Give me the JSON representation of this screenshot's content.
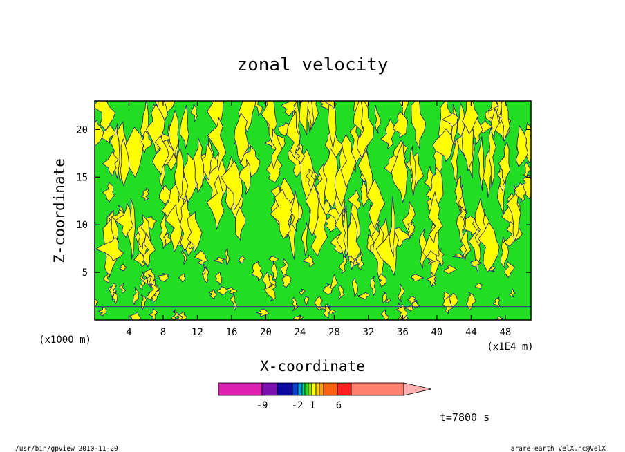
{
  "chart_data": {
    "type": "heatmap",
    "title": "zonal velocity",
    "xlabel": "X-coordinate",
    "ylabel": "Z-coordinate",
    "x_unit": "(x1E4 m)",
    "y_unit": "(x1000 m)",
    "xlim": [
      0,
      51
    ],
    "ylim": [
      0,
      23
    ],
    "x_ticks": [
      4,
      8,
      12,
      16,
      20,
      24,
      28,
      32,
      36,
      40,
      44,
      48
    ],
    "y_ticks": [
      5,
      10,
      15,
      20
    ],
    "x_tick_labels": [
      "4",
      "8",
      "12",
      "16",
      "20",
      "24",
      "28",
      "32",
      "36",
      "40",
      "44",
      "48"
    ],
    "y_tick_labels": [
      "5",
      "10",
      "15",
      "20"
    ],
    "fill_colors": {
      "negative": "#22dd22",
      "positive": "#ffff00",
      "contour": "#2a2a80"
    },
    "colorbar": {
      "colors": [
        "#e020b0",
        "#7a10b0",
        "#0a0aa0",
        "#0a40d0",
        "#0aa0e0",
        "#00dd80",
        "#22dd22",
        "#90dd00",
        "#ffff00",
        "#ffd000",
        "#ffa000",
        "#ff6010",
        "#ff2020",
        "#ff8070",
        "#ffb0b0"
      ],
      "tick_labels": [
        "-9",
        "-2",
        "1",
        "6"
      ]
    },
    "time_label": "t=7800 s"
  },
  "footer": {
    "left": "/usr/bin/gpview   2010-11-20",
    "right": "arare-earth_VelX.nc@VelX"
  }
}
